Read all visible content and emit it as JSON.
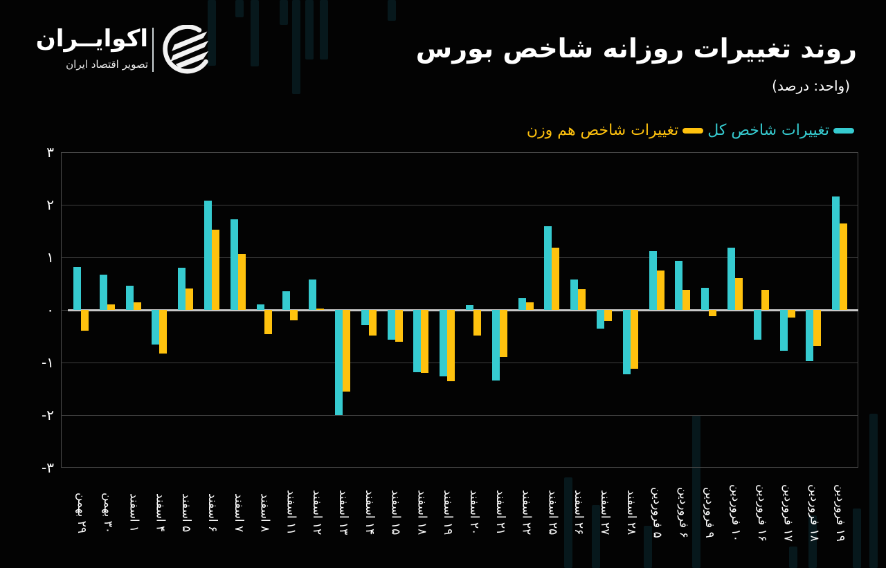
{
  "header": {
    "title": "روند تغییرات روزانه شاخص بورس",
    "unit": "(واحد: درصد)"
  },
  "logo": {
    "name": "اکوایــران",
    "tagline": "تصویر اقتصاد ایران",
    "icon": "brand-swoosh-icon"
  },
  "legend": [
    {
      "label": "تغییرات شاخص کل",
      "color": "#36CBD0"
    },
    {
      "label": "تغییرات شاخص هم وزن",
      "color": "#FFC20E"
    }
  ],
  "colors": {
    "background": "#030303",
    "series_total": "#36CBD0",
    "series_equal": "#FFC20E",
    "grid": "#3f3f3f",
    "baseline": "#c9c9c9"
  },
  "yaxis": {
    "ticks": [
      {
        "value": 3,
        "label": "۳"
      },
      {
        "value": 2,
        "label": "۲"
      },
      {
        "value": 1,
        "label": "۱"
      },
      {
        "value": 0,
        "label": "۰"
      },
      {
        "value": -1,
        "label": "-۱"
      },
      {
        "value": -2,
        "label": "-۲"
      },
      {
        "value": -3,
        "label": "-۳"
      }
    ]
  },
  "chart_data": {
    "type": "bar",
    "title": "روند تغییرات روزانه شاخص بورس",
    "subtitle": "(واحد: درصد)",
    "xlabel": "",
    "ylabel": "درصد",
    "ylim": [
      -3,
      3
    ],
    "grid": true,
    "legend_position": "top-right",
    "categories": [
      "۲۹ بهمن",
      "۳۰ بهمن",
      "۱ اسفند",
      "۴ اسفند",
      "۵ اسفند",
      "۶ اسفند",
      "۷ اسفند",
      "۸ اسفند",
      "۱۱ اسفند",
      "۱۲ اسفند",
      "۱۳ اسفند",
      "۱۴ اسفند",
      "۱۵ اسفند",
      "۱۸ اسفند",
      "۱۹ اسفند",
      "۲۰ اسفند",
      "۲۱ اسفند",
      "۲۲ اسفند",
      "۲۵ اسفند",
      "۲۶ اسفند",
      "۲۷ اسفند",
      "۲۸ اسفند",
      "۵ فروردین",
      "۶ فروردین",
      "۹ فروردین",
      "۱۰ فروردین",
      "۱۶ فروردین",
      "۱۷ فروردین",
      "۱۸ فروردین",
      "۱۹ فروردین"
    ],
    "series": [
      {
        "name": "تغییرات شاخص کل",
        "color": "#36CBD0",
        "values": [
          0.82,
          0.67,
          0.46,
          -0.66,
          0.8,
          2.08,
          1.73,
          0.1,
          0.36,
          0.58,
          -2.0,
          -0.29,
          -0.56,
          -1.19,
          -1.26,
          0.09,
          -1.34,
          0.22,
          1.59,
          0.58,
          -0.36,
          -1.23,
          1.12,
          0.93,
          0.42,
          1.18,
          -0.56,
          -0.78,
          -0.98,
          2.16
        ]
      },
      {
        "name": "تغییرات شاخص هم وزن",
        "color": "#FFC20E",
        "values": [
          -0.4,
          0.1,
          0.15,
          -0.83,
          0.41,
          1.52,
          1.06,
          -0.46,
          -0.2,
          0.03,
          -1.55,
          -0.49,
          -0.61,
          -1.2,
          -1.36,
          -0.49,
          -0.89,
          0.15,
          1.19,
          0.39,
          -0.21,
          -1.12,
          0.75,
          0.38,
          -0.12,
          0.61,
          0.38,
          -0.15,
          -0.69,
          1.64
        ]
      }
    ]
  }
}
